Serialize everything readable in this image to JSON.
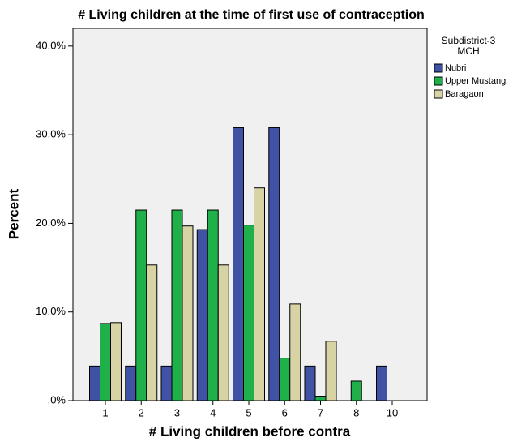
{
  "chart_data": {
    "type": "bar",
    "title": "# Living children at the time of first use of contraception",
    "x_label": "# Living children before contra",
    "y_label": "Percent",
    "legend_title": [
      "Subdistrict-3",
      "MCH"
    ],
    "categories": [
      "1",
      "2",
      "3",
      "4",
      "5",
      "6",
      "7",
      "8",
      "10"
    ],
    "series": [
      {
        "name": "Nubri",
        "color": "#3f52a3",
        "values": [
          3.9,
          3.9,
          3.9,
          19.3,
          30.8,
          30.8,
          3.9,
          0,
          3.9
        ]
      },
      {
        "name": "Upper Mustang",
        "color": "#1fb04a",
        "values": [
          8.7,
          21.5,
          21.5,
          21.5,
          19.8,
          4.8,
          0.5,
          2.2,
          0
        ]
      },
      {
        "name": "Baragaon",
        "color": "#d8d3a4",
        "values": [
          8.8,
          15.3,
          19.7,
          15.3,
          24.0,
          10.9,
          6.7,
          0,
          0
        ]
      }
    ],
    "ylim": [
      0,
      42
    ],
    "yticks": [
      {
        "value": 0,
        "label": ".0%"
      },
      {
        "value": 10,
        "label": "10.0%"
      },
      {
        "value": 20,
        "label": "20.0%"
      },
      {
        "value": 30,
        "label": "30.0%"
      },
      {
        "value": 40,
        "label": "40.0%"
      }
    ]
  }
}
